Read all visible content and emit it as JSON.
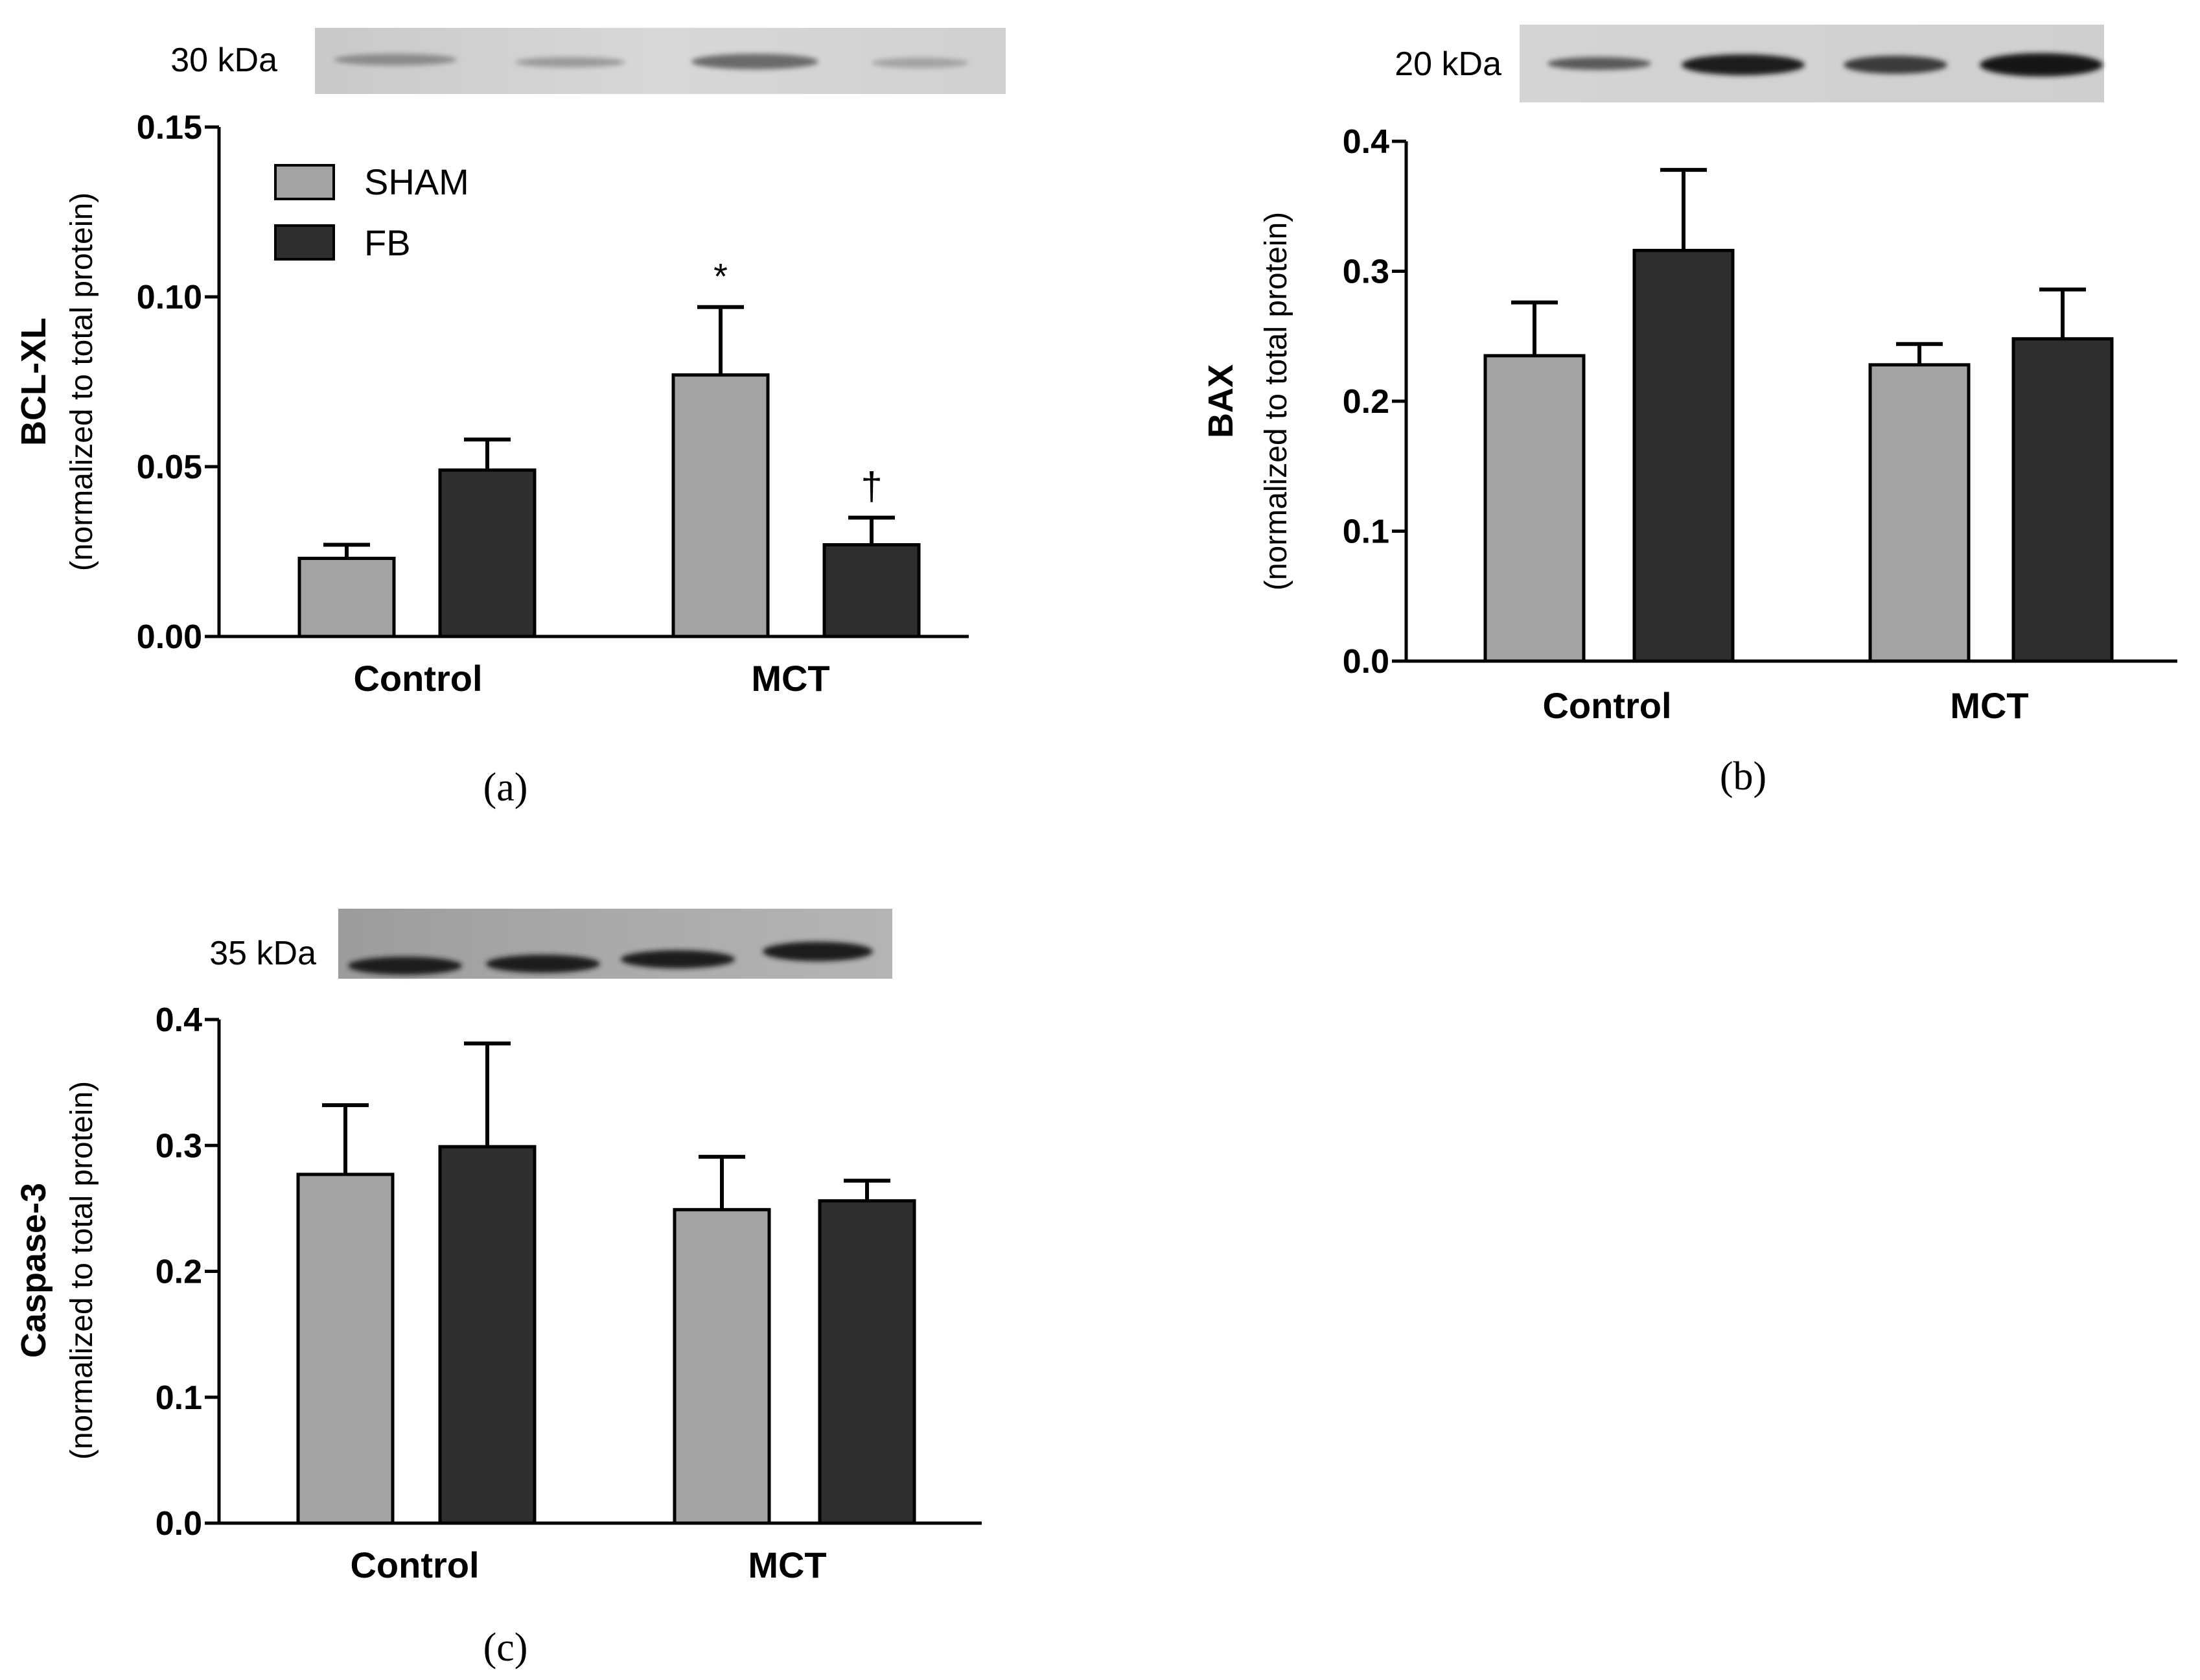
{
  "colors": {
    "sham": "#a3a3a3",
    "fb": "#2e2e2e",
    "axis": "#000000"
  },
  "legend": {
    "placement": "top-left of panel (a)",
    "items": [
      {
        "label": "SHAM",
        "color": "#a3a3a3"
      },
      {
        "label": "FB",
        "color": "#2e2e2e"
      }
    ]
  },
  "chart_data": [
    {
      "type": "bar",
      "panel_label": "(a)",
      "blot_label": "30 kDa",
      "categories": [
        "Control",
        "MCT"
      ],
      "ylabel": "BCL-XL",
      "ylabel2": "(normalized to total protein)",
      "ylim": [
        0,
        0.15
      ],
      "yticks": [
        "0.00",
        "0.05",
        "0.10",
        "0.15"
      ],
      "series": [
        {
          "name": "SHAM",
          "values": [
            0.023,
            0.077
          ],
          "errors": [
            0.004,
            0.02
          ]
        },
        {
          "name": "FB",
          "values": [
            0.049,
            0.027
          ],
          "errors": [
            0.009,
            0.008
          ]
        }
      ],
      "annotations": [
        {
          "text": "*",
          "category": "MCT",
          "series": "SHAM"
        },
        {
          "text": "†",
          "category": "MCT",
          "series": "FB"
        }
      ]
    },
    {
      "type": "bar",
      "panel_label": "(b)",
      "blot_label": "20 kDa",
      "categories": [
        "Control",
        "MCT"
      ],
      "ylabel": "BAX",
      "ylabel2": "(normalized to total protein)",
      "ylim": [
        0,
        0.4
      ],
      "yticks": [
        "0.0",
        "0.1",
        "0.2",
        "0.3",
        "0.4"
      ],
      "series": [
        {
          "name": "SHAM",
          "values": [
            0.235,
            0.228
          ],
          "errors": [
            0.041,
            0.016
          ]
        },
        {
          "name": "FB",
          "values": [
            0.316,
            0.248
          ],
          "errors": [
            0.062,
            0.038
          ]
        }
      ],
      "annotations": []
    },
    {
      "type": "bar",
      "panel_label": "(c)",
      "blot_label": "35 kDa",
      "categories": [
        "Control",
        "MCT"
      ],
      "ylabel": "Caspase-3",
      "ylabel2": "(normalized to total protein)",
      "ylim": [
        0,
        0.4
      ],
      "yticks": [
        "0.0",
        "0.1",
        "0.2",
        "0.3",
        "0.4"
      ],
      "series": [
        {
          "name": "SHAM",
          "values": [
            0.277,
            0.249
          ],
          "errors": [
            0.055,
            0.042
          ]
        },
        {
          "name": "FB",
          "values": [
            0.299,
            0.256
          ],
          "errors": [
            0.082,
            0.016
          ]
        }
      ],
      "annotations": []
    }
  ]
}
